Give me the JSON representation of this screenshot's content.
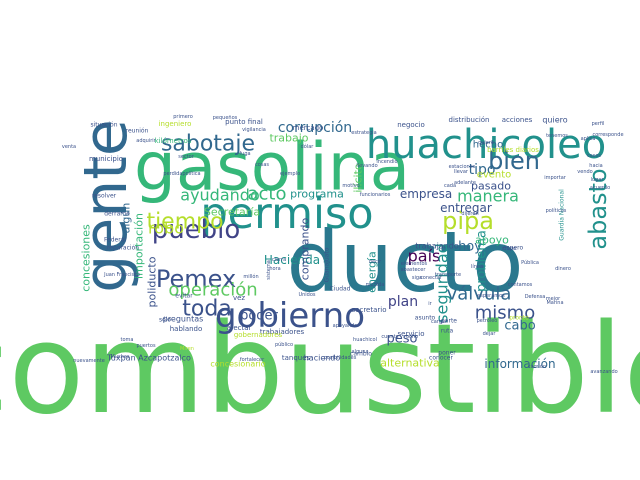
{
  "colors": {
    "background": "#ffffff",
    "palette": [
      "#440154",
      "#3b528b",
      "#21918c",
      "#2a788e",
      "#5ec962",
      "#7ad151",
      "#b5de2b",
      "#fde725",
      "#31688e",
      "#35b779"
    ]
  },
  "words": [
    {
      "text": "combustible",
      "weight": 100,
      "color": "#5ec962",
      "orient": "h"
    },
    {
      "text": "ducto",
      "weight": 92,
      "color": "#2a788e",
      "orient": "h"
    },
    {
      "text": "gasolina",
      "weight": 78,
      "color": "#35b779",
      "orient": "h"
    },
    {
      "text": "gente",
      "weight": 72,
      "color": "#31688e",
      "orient": "v"
    },
    {
      "text": "permiso",
      "weight": 55,
      "color": "#21918c",
      "orient": "h"
    },
    {
      "text": "huachicoleo",
      "weight": 50,
      "color": "#21918c",
      "orient": "h"
    },
    {
      "text": "gobierno",
      "weight": 42,
      "color": "#3b528b",
      "orient": "h"
    },
    {
      "text": "pueblo",
      "weight": 38,
      "color": "#414487",
      "orient": "h"
    },
    {
      "text": "Pemex",
      "weight": 37,
      "color": "#3b528b",
      "orient": "h"
    },
    {
      "text": "bien",
      "weight": 35,
      "color": "#31688e",
      "orient": "h"
    },
    {
      "text": "pipa",
      "weight": 34,
      "color": "#b5de2b",
      "orient": "h"
    },
    {
      "text": "abasto",
      "weight": 33,
      "color": "#21918c",
      "orient": "v"
    },
    {
      "text": "sabotaje",
      "weight": 30,
      "color": "#31688e",
      "orient": "h"
    },
    {
      "text": "tiempo",
      "weight": 30,
      "color": "#b5de2b",
      "orient": "h"
    },
    {
      "text": "toda",
      "weight": 29,
      "color": "#3b528b",
      "orient": "h"
    },
    {
      "text": "operación",
      "weight": 26,
      "color": "#5ec962",
      "orient": "h"
    },
    {
      "text": "acto",
      "weight": 24,
      "color": "#35b779",
      "orient": "h"
    },
    {
      "text": "mismo",
      "weight": 24,
      "color": "#3b528b",
      "orient": "h"
    },
    {
      "text": "válvula",
      "weight": 24,
      "color": "#31688e",
      "orient": "h"
    },
    {
      "text": "manera",
      "weight": 22,
      "color": "#35b779",
      "orient": "h"
    },
    {
      "text": "robo",
      "weight": 22,
      "color": "#b5de2b",
      "orient": "h"
    },
    {
      "text": "ayudando",
      "weight": 21,
      "color": "#35b779",
      "orient": "h"
    },
    {
      "text": "país",
      "weight": 20,
      "color": "#440154",
      "orient": "h"
    },
    {
      "text": "seguridad",
      "weight": 20,
      "color": "#21918c",
      "orient": "v"
    },
    {
      "text": "corrupción",
      "weight": 16,
      "color": "#31688e",
      "orient": "h"
    },
    {
      "text": "tipo",
      "weight": 16,
      "color": "#31688e",
      "orient": "h"
    },
    {
      "text": "plan",
      "weight": 16,
      "color": "#414487",
      "orient": "h"
    },
    {
      "text": "cabo",
      "weight": 16,
      "color": "#31688e",
      "orient": "h"
    },
    {
      "text": "poder",
      "weight": 16,
      "color": "#3b528b",
      "orient": "h"
    },
    {
      "text": "hoy",
      "weight": 16,
      "color": "#31688e",
      "orient": "h"
    },
    {
      "text": "peso",
      "weight": 15,
      "color": "#3b528b",
      "orient": "h"
    },
    {
      "text": "problema",
      "weight": 15,
      "color": "#21918c",
      "orient": "v"
    },
    {
      "text": "información",
      "weight": 14,
      "color": "#31688e",
      "orient": "h"
    },
    {
      "text": "Hacienda",
      "weight": 14,
      "color": "#21918c",
      "orient": "h"
    },
    {
      "text": "empresa",
      "weight": 14,
      "color": "#3b528b",
      "orient": "h"
    },
    {
      "text": "entregar",
      "weight": 14,
      "color": "#3b528b",
      "orient": "h"
    },
    {
      "text": "pasado",
      "weight": 13,
      "color": "#3b528b",
      "orient": "h"
    },
    {
      "text": "trabajo",
      "weight": 13,
      "color": "#5ec962",
      "orient": "h"
    },
    {
      "text": "programa",
      "weight": 13,
      "color": "#21918c",
      "orient": "h"
    },
    {
      "text": "comprando",
      "weight": 12,
      "color": "#3b528b",
      "orient": "v"
    },
    {
      "text": "apoyo",
      "weight": 12,
      "color": "#35b779",
      "orient": "h"
    },
    {
      "text": "importación",
      "weight": 12,
      "color": "#35b779",
      "orient": "v"
    },
    {
      "text": "concesiones",
      "weight": 12,
      "color": "#35b779",
      "orient": "v"
    },
    {
      "text": "poliducto",
      "weight": 12,
      "color": "#3b528b",
      "orient": "v"
    },
    {
      "text": "energía",
      "weight": 12,
      "color": "#21918c",
      "orient": "v"
    },
    {
      "text": "alternativa",
      "weight": 11,
      "color": "#b5de2b",
      "orient": "h"
    },
    {
      "text": "Secretaría",
      "weight": 11,
      "color": "#5ec962",
      "orient": "h"
    },
    {
      "text": "ilícito",
      "weight": 11,
      "color": "#5ec962",
      "orient": "v"
    },
    {
      "text": "algún",
      "weight": 11,
      "color": "#31688e",
      "orient": "v"
    },
    {
      "text": "evento",
      "weight": 11,
      "color": "#b5de2b",
      "orient": "h"
    },
    {
      "text": "hecho",
      "weight": 10,
      "color": "#31688e",
      "orient": "h"
    },
    {
      "text": "Tuxpan Azcapotzalco",
      "weight": 9,
      "color": "#3b528b",
      "orient": "h"
    },
    {
      "text": "concesionario",
      "weight": 9,
      "color": "#b5de2b",
      "orient": "h"
    },
    {
      "text": "preguntas",
      "weight": 9,
      "color": "#3b528b",
      "orient": "h"
    },
    {
      "text": "trabajando",
      "weight": 9,
      "color": "#3b528b",
      "orient": "h"
    },
    {
      "text": "haciendo",
      "weight": 9,
      "color": "#3b528b",
      "orient": "h"
    },
    {
      "text": "barriles diarios",
      "weight": 8,
      "color": "#b5de2b",
      "orient": "h"
    },
    {
      "text": "negocio",
      "weight": 8,
      "color": "#3b528b",
      "orient": "h"
    },
    {
      "text": "acciones",
      "weight": 8,
      "color": "#3b528b",
      "orient": "h"
    },
    {
      "text": "distribución",
      "weight": 8,
      "color": "#3b528b",
      "orient": "h"
    },
    {
      "text": "quiero",
      "weight": 8,
      "color": "#3b528b",
      "orient": "h"
    },
    {
      "text": "ingeniero",
      "weight": 8,
      "color": "#b5de2b",
      "orient": "h"
    },
    {
      "text": "punto final",
      "weight": 8,
      "color": "#3b528b",
      "orient": "h"
    },
    {
      "text": "mercado",
      "weight": 7,
      "color": "#3b528b",
      "orient": "h"
    },
    {
      "text": "kilómetros",
      "weight": 7,
      "color": "#35b779",
      "orient": "h"
    },
    {
      "text": "municipio",
      "weight": 7,
      "color": "#3b528b",
      "orient": "h"
    },
    {
      "text": "trabajadores",
      "weight": 7,
      "color": "#3b528b",
      "orient": "h"
    },
    {
      "text": "gobernadores",
      "weight": 7,
      "color": "#b5de2b",
      "orient": "h"
    },
    {
      "text": "servicio",
      "weight": 7,
      "color": "#3b528b",
      "orient": "h"
    },
    {
      "text": "secretario",
      "weight": 7,
      "color": "#3b528b",
      "orient": "h"
    },
    {
      "text": "tanques",
      "weight": 7,
      "color": "#3b528b",
      "orient": "h"
    },
    {
      "text": "vez",
      "weight": 7,
      "color": "#3b528b",
      "orient": "h"
    },
    {
      "text": "hablando",
      "weight": 7,
      "color": "#3b528b",
      "orient": "h"
    },
    {
      "text": "afectar",
      "weight": 7,
      "color": "#3b528b",
      "orient": "h"
    },
    {
      "text": "evitar",
      "weight": 6,
      "color": "#3b528b",
      "orient": "h"
    },
    {
      "text": "sólo",
      "weight": 6,
      "color": "#3b528b",
      "orient": "h"
    },
    {
      "text": "situación",
      "weight": 6,
      "color": "#3b528b",
      "orient": "h"
    },
    {
      "text": "reunión",
      "weight": 6,
      "color": "#3b528b",
      "orient": "h"
    },
    {
      "text": "resolver",
      "weight": 6,
      "color": "#3b528b",
      "orient": "h"
    },
    {
      "text": "derrame",
      "weight": 6,
      "color": "#3b528b",
      "orient": "h"
    },
    {
      "text": "Federal",
      "weight": 6,
      "color": "#3b528b",
      "orient": "h"
    },
    {
      "text": "reparación",
      "weight": 6,
      "color": "#3b528b",
      "orient": "h"
    },
    {
      "text": "Guanajuato",
      "weight": 6,
      "color": "#3b528b",
      "orient": "v"
    },
    {
      "text": "Guardia Nacional",
      "weight": 6,
      "color": "#21918c",
      "orient": "v"
    },
    {
      "text": "Ciudad",
      "weight": 6,
      "color": "#3b528b",
      "orient": "h"
    },
    {
      "text": "ruta",
      "weight": 6,
      "color": "#3b528b",
      "orient": "h"
    },
    {
      "text": "parte",
      "weight": 6,
      "color": "#3b528b",
      "orient": "h"
    },
    {
      "text": "asunto",
      "weight": 6,
      "color": "#3b528b",
      "orient": "h"
    },
    {
      "text": "conocer",
      "weight": 6,
      "color": "#3b528b",
      "orient": "h"
    },
    {
      "text": "poner",
      "weight": 6,
      "color": "#3b528b",
      "orient": "h"
    },
    {
      "text": "cambio",
      "weight": 6,
      "color": "#3b528b",
      "orient": "h"
    },
    {
      "text": "espero",
      "weight": 6,
      "color": "#3b528b",
      "orient": "h"
    },
    {
      "text": "pronto",
      "weight": 6,
      "color": "#b5de2b",
      "orient": "h"
    },
    {
      "text": "dinero",
      "weight": 6,
      "color": "#3b528b",
      "orient": "h"
    },
    {
      "text": "mejor",
      "weight": 5,
      "color": "#3b528b",
      "orient": "h"
    },
    {
      "text": "Defensa",
      "weight": 5,
      "color": "#3b528b",
      "orient": "h"
    },
    {
      "text": "Marina",
      "weight": 5,
      "color": "#3b528b",
      "orient": "h"
    },
    {
      "text": "cuenta",
      "weight": 5,
      "color": "#3b528b",
      "orient": "h"
    },
    {
      "text": "público",
      "weight": 5,
      "color": "#3b528b",
      "orient": "h"
    },
    {
      "text": "estrategia",
      "weight": 5,
      "color": "#3b528b",
      "orient": "h"
    },
    {
      "text": "Juan Francisco",
      "weight": 5,
      "color": "#3b528b",
      "orient": "h"
    },
    {
      "text": "sector",
      "weight": 5,
      "color": "#3b528b",
      "orient": "h"
    },
    {
      "text": "vigilancia",
      "weight": 5,
      "color": "#3b528b",
      "orient": "h"
    },
    {
      "text": "dólar",
      "weight": 5,
      "color": "#3b528b",
      "orient": "h"
    },
    {
      "text": "fuga",
      "weight": 5,
      "color": "#3b528b",
      "orient": "h"
    },
    {
      "text": "ejemplo",
      "weight": 5,
      "color": "#3b528b",
      "orient": "h"
    },
    {
      "text": "perdidapolítica",
      "weight": 5,
      "color": "#3b528b",
      "orient": "h"
    },
    {
      "text": "millón",
      "weight": 5,
      "color": "#3b528b",
      "orient": "h"
    },
    {
      "text": "puertos",
      "weight": 5,
      "color": "#3b528b",
      "orient": "h"
    },
    {
      "text": "toma",
      "weight": 5,
      "color": "#3b528b",
      "orient": "h"
    },
    {
      "text": "Miren",
      "weight": 5,
      "color": "#b5de2b",
      "orient": "h"
    },
    {
      "text": "Muchas",
      "weight": 5,
      "color": "#3b528b",
      "orient": "h"
    },
    {
      "text": "nuevamente",
      "weight": 5,
      "color": "#3b528b",
      "orient": "h"
    },
    {
      "text": "cierra",
      "weight": 5,
      "color": "#3b528b",
      "orient": "h"
    },
    {
      "text": "hora",
      "weight": 5,
      "color": "#3b528b",
      "orient": "h"
    },
    {
      "text": "siga",
      "weight": 5,
      "color": "#3b528b",
      "orient": "h"
    },
    {
      "text": "abastecer",
      "weight": 5,
      "color": "#3b528b",
      "orient": "h"
    },
    {
      "text": "apoyando",
      "weight": 5,
      "color": "#3b528b",
      "orient": "h"
    },
    {
      "text": "huachicol",
      "weight": 5,
      "color": "#3b528b",
      "orient": "h"
    },
    {
      "text": "incendio",
      "weight": 5,
      "color": "#3b528b",
      "orient": "h"
    },
    {
      "text": "avanzando",
      "weight": 5,
      "color": "#3b528b",
      "orient": "h"
    },
    {
      "text": "transporte",
      "weight": 5,
      "color": "#3b528b",
      "orient": "h"
    },
    {
      "text": "políticos",
      "weight": 5,
      "color": "#3b528b",
      "orient": "h"
    },
    {
      "text": "acuerdo",
      "weight": 5,
      "color": "#3b528b",
      "orient": "h"
    },
    {
      "text": "casos",
      "weight": 5,
      "color": "#3b528b",
      "orient": "h"
    },
    {
      "text": "llevando",
      "weight": 5,
      "color": "#3b528b",
      "orient": "h"
    },
    {
      "text": "primero",
      "weight": 5,
      "color": "#3b528b",
      "orient": "h"
    },
    {
      "text": "pequeños",
      "weight": 5,
      "color": "#3b528b",
      "orient": "h"
    },
    {
      "text": "adquirir",
      "weight": 5,
      "color": "#3b528b",
      "orient": "h"
    },
    {
      "text": "corresponde",
      "weight": 5,
      "color": "#3b528b",
      "orient": "h"
    },
    {
      "text": "perfil",
      "weight": 5,
      "color": "#3b528b",
      "orient": "h"
    },
    {
      "text": "aplica",
      "weight": 5,
      "color": "#3b528b",
      "orient": "h"
    },
    {
      "text": "venta",
      "weight": 5,
      "color": "#3b528b",
      "orient": "h"
    },
    {
      "text": "importar",
      "weight": 5,
      "color": "#3b528b",
      "orient": "h"
    },
    {
      "text": "sistema",
      "weight": 5,
      "color": "#3b528b",
      "orient": "v"
    },
    {
      "text": "camión",
      "weight": 5,
      "color": "#3b528b",
      "orient": "h"
    },
    {
      "text": "elementos",
      "weight": 5,
      "color": "#3b528b",
      "orient": "h"
    },
    {
      "text": "cargar",
      "weight": 5,
      "color": "#3b528b",
      "orient": "h"
    },
    {
      "text": "Unidos",
      "weight": 5,
      "color": "#3b528b",
      "orient": "h"
    },
    {
      "text": "medida",
      "weight": 5,
      "color": "#3b528b",
      "orient": "h"
    },
    {
      "text": "dejar",
      "weight": 5,
      "color": "#3b528b",
      "orient": "h"
    },
    {
      "text": "contamos",
      "weight": 5,
      "color": "#3b528b",
      "orient": "h"
    },
    {
      "text": "fortalecer",
      "weight": 5,
      "color": "#3b528b",
      "orient": "h"
    },
    {
      "text": "alguna",
      "weight": 5,
      "color": "#3b528b",
      "orient": "h"
    },
    {
      "text": "posibilidades",
      "weight": 5,
      "color": "#3b528b",
      "orient": "h"
    },
    {
      "text": "línea",
      "weight": 5,
      "color": "#3b528b",
      "orient": "h"
    },
    {
      "text": "dijeron",
      "weight": 5,
      "color": "#3b528b",
      "orient": "h"
    },
    {
      "text": "crudo",
      "weight": 5,
      "color": "#3b528b",
      "orient": "h"
    },
    {
      "text": "hacia",
      "weight": 5,
      "color": "#3b528b",
      "orient": "h"
    },
    {
      "text": "lugar",
      "weight": 5,
      "color": "#3b528b",
      "orient": "h"
    },
    {
      "text": "vendo",
      "weight": 5,
      "color": "#3b528b",
      "orient": "h"
    },
    {
      "text": "cosas",
      "weight": 5,
      "color": "#3b528b",
      "orient": "h"
    },
    {
      "text": "decir",
      "weight": 5,
      "color": "#3b528b",
      "orient": "h"
    },
    {
      "text": "ocho",
      "weight": 5,
      "color": "#3b528b",
      "orient": "h"
    },
    {
      "text": "ir",
      "weight": 5,
      "color": "#3b528b",
      "orient": "h"
    },
    {
      "text": "cada",
      "weight": 5,
      "color": "#3b528b",
      "orient": "h"
    },
    {
      "text": "motivo",
      "weight": 5,
      "color": "#3b528b",
      "orient": "h"
    },
    {
      "text": "funcionarios",
      "weight": 5,
      "color": "#3b528b",
      "orient": "h"
    },
    {
      "text": "adelante",
      "weight": 5,
      "color": "#3b528b",
      "orient": "h"
    },
    {
      "text": "llevar",
      "weight": 5,
      "color": "#3b528b",
      "orient": "h"
    },
    {
      "text": "Pública",
      "weight": 5,
      "color": "#3b528b",
      "orient": "h"
    },
    {
      "text": "conectar",
      "weight": 5,
      "color": "#3b528b",
      "orient": "h"
    },
    {
      "text": "esperamos",
      "weight": 5,
      "color": "#3b528b",
      "orient": "h"
    },
    {
      "text": "quiere",
      "weight": 5,
      "color": "#3b528b",
      "orient": "h"
    },
    {
      "text": "estaciones",
      "weight": 5,
      "color": "#3b528b",
      "orient": "h"
    },
    {
      "text": "petróleo",
      "weight": 5,
      "color": "#3b528b",
      "orient": "h"
    },
    {
      "text": "tenemos",
      "weight": 5,
      "color": "#3b528b",
      "orient": "h"
    },
    {
      "text": "estar",
      "weight": 5,
      "color": "#3b528b",
      "orient": "h"
    },
    {
      "text": "lleva",
      "weight": 5,
      "color": "#3b528b",
      "orient": "h"
    },
    {
      "text": "compra",
      "weight": 5,
      "color": "#3b528b",
      "orient": "h"
    },
    {
      "text": "bicieron",
      "weight": 5,
      "color": "#3b528b",
      "orient": "h"
    }
  ]
}
